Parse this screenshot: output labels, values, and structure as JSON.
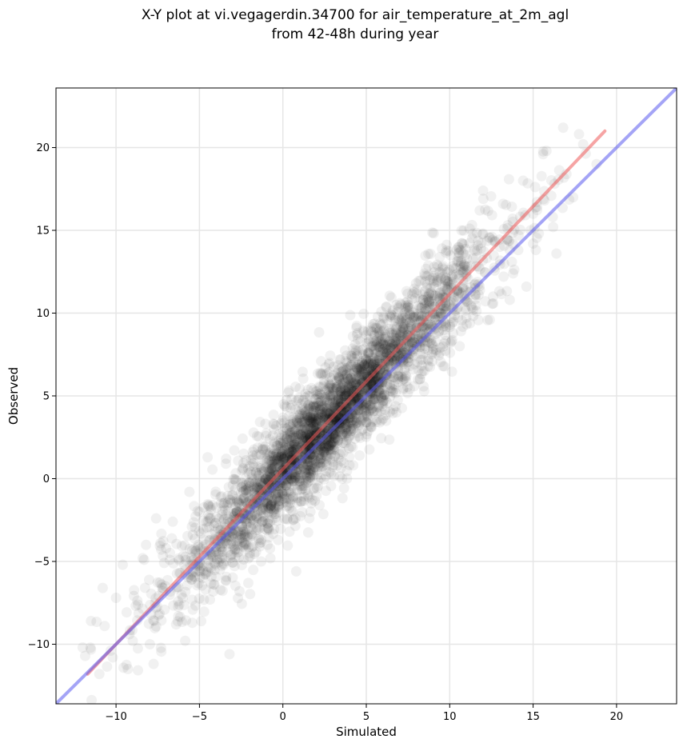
{
  "chart_data": {
    "type": "scatter",
    "title_lines": [
      "X-Y plot at vi.vegagerdin.34700 for air_temperature_at_2m_agl",
      "from 42-48h during year"
    ],
    "xlabel": "Simulated",
    "ylabel": "Observed",
    "xlim": [
      -13.6,
      23.6
    ],
    "ylim": [
      -13.6,
      23.6
    ],
    "xticks": [
      -10,
      -5,
      0,
      5,
      10,
      15,
      20
    ],
    "yticks": [
      -10,
      -5,
      0,
      5,
      10,
      15,
      20
    ],
    "tick_labels_x": [
      "−10",
      "−5",
      "0",
      "5",
      "10",
      "15",
      "20"
    ],
    "tick_labels_y": [
      "−10",
      "−5",
      "0",
      "5",
      "10",
      "15",
      "20"
    ],
    "grid": true,
    "points_note_values": {
      "x": [
        -11.5,
        -10.8,
        -10.2,
        -9.6,
        -9.0,
        -8.4,
        -7.9,
        -7.2,
        -6.6,
        -6.0,
        -5.4,
        -4.8,
        -4.2,
        -3.6,
        -3.0,
        -2.4,
        -1.8,
        -1.2,
        -0.6,
        0.0,
        0.6,
        1.2,
        1.8,
        2.4,
        3.0,
        3.6,
        4.2,
        4.8,
        5.4,
        6.0,
        6.6,
        7.2,
        7.8,
        8.4,
        9.0,
        9.6,
        10.2,
        10.8,
        11.4,
        12.0,
        12.6,
        13.2,
        13.8,
        14.4,
        15.0,
        15.6,
        16.2,
        16.8,
        17.4,
        18.0,
        -11.0,
        -9.2,
        -7.0,
        -5.0,
        -3.0,
        -1.0,
        1.0,
        3.0,
        5.0,
        7.0,
        9.0,
        11.0,
        13.0,
        15.0,
        17.0,
        -2.6,
        -1.3,
        -5.6,
        -8.2,
        2.2,
        4.6,
        6.8,
        9.6,
        12.4,
        14.6,
        16.4,
        -6.4,
        -4.1,
        0.4,
        2.8,
        5.8,
        8.2,
        10.6,
        13.6,
        3.4,
        1.5,
        -0.4,
        -3.4,
        -7.6,
        6.2,
        8.8,
        11.8,
        15.8,
        -10.0,
        -12.0,
        18.8,
        4.2,
        12.0,
        -3.2,
        0.8
      ],
      "y": [
        -8.6,
        -6.6,
        -10.8,
        -5.2,
        -9.8,
        -4.8,
        -8.2,
        -6.8,
        -2.6,
        -7.2,
        -3.4,
        -6.0,
        -1.6,
        -4.4,
        -0.4,
        -3.2,
        1.4,
        -1.8,
        2.6,
        0.2,
        -1.2,
        3.4,
        0.6,
        4.2,
        2.0,
        5.6,
        3.0,
        6.4,
        4.8,
        7.8,
        5.2,
        9.4,
        6.6,
        10.8,
        8.0,
        12.2,
        8.8,
        13.6,
        10.2,
        14.8,
        11.0,
        16.6,
        12.4,
        18.0,
        14.2,
        19.6,
        15.2,
        21.2,
        17.0,
        20.2,
        -11.8,
        -9.4,
        -4.2,
        -2.0,
        -1.0,
        1.2,
        2.4,
        4.6,
        6.0,
        8.6,
        10.0,
        12.6,
        14.0,
        16.0,
        18.4,
        -6.8,
        -5.0,
        -0.8,
        -4.0,
        -1.6,
        1.4,
        4.0,
        6.8,
        9.6,
        11.6,
        13.6,
        -8.8,
        -6.4,
        -3.2,
        0.4,
        3.4,
        6.0,
        8.0,
        10.8,
        7.2,
        5.0,
        3.2,
        1.2,
        -2.4,
        10.4,
        12.0,
        16.2,
        19.8,
        -7.2,
        -10.2,
        19.0,
        8.6,
        17.4,
        -10.6,
        -5.6
      ]
    },
    "series": [
      {
        "values_note": "regression-line",
        "x": [
          -11.7,
          19.3
        ],
        "y": [
          -11.8,
          21.0
        ],
        "color": "#ee5a5a"
      },
      {
        "values_note": "identity-line",
        "x": [
          -13.6,
          23.6
        ],
        "y": [
          -13.6,
          23.6
        ],
        "color": "#5a5aee"
      }
    ]
  }
}
